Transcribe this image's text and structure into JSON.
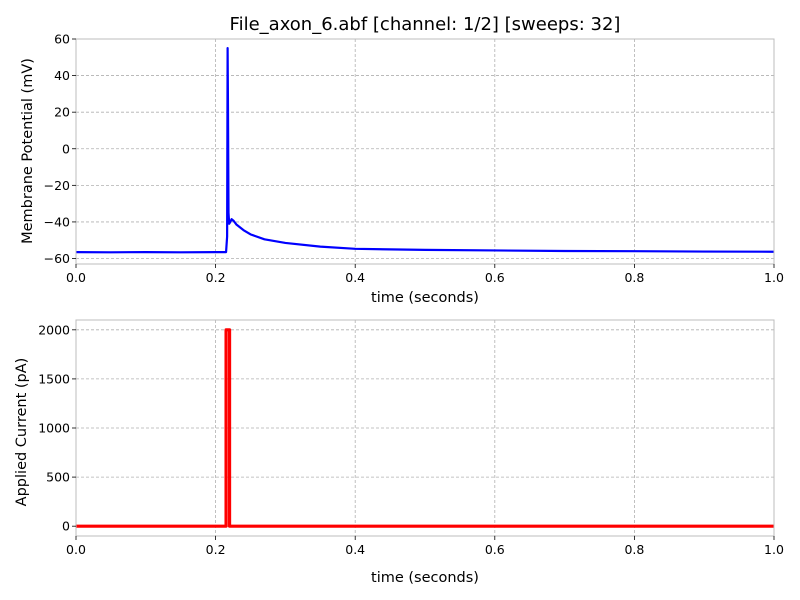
{
  "chart_data": [
    {
      "type": "line",
      "title": "File_axon_6.abf [channel: 1/2] [sweeps: 32]",
      "xlabel": "time (seconds)",
      "ylabel": "Membrane Potential (mV)",
      "xlim": [
        0.0,
        1.0
      ],
      "ylim": [
        -63,
        60
      ],
      "xticks": [
        0.0,
        0.2,
        0.4,
        0.6,
        0.8,
        1.0
      ],
      "xtick_labels": [
        "0.0",
        "0.2",
        "0.4",
        "0.6",
        "0.8",
        "1.0"
      ],
      "yticks": [
        60,
        40,
        20,
        0,
        -20,
        -40,
        -60
      ],
      "ytick_labels": [
        "60",
        "40",
        "20",
        "0",
        "−20",
        "−40",
        "−60"
      ],
      "grid": true,
      "color": "#0000ff",
      "series": [
        {
          "x": [
            0.0,
            0.05,
            0.1,
            0.15,
            0.2,
            0.215,
            0.2165,
            0.2172,
            0.2178,
            0.2185,
            0.2195,
            0.221,
            0.223,
            0.226,
            0.23,
            0.24,
            0.25,
            0.27,
            0.3,
            0.35,
            0.4,
            0.5,
            0.6,
            0.7,
            0.8,
            0.9,
            1.0
          ],
          "y": [
            -56.5,
            -56.6,
            -56.5,
            -56.6,
            -56.5,
            -56.5,
            -48,
            55,
            20,
            -35,
            -41,
            -40,
            -38.5,
            -39.5,
            -41.5,
            -44.5,
            -46.8,
            -49.5,
            -51.5,
            -53.5,
            -54.7,
            -55.3,
            -55.6,
            -55.9,
            -56.0,
            -56.2,
            -56.3
          ]
        }
      ]
    },
    {
      "type": "line",
      "xlabel": "time (seconds)",
      "ylabel": "Applied Current (pA)",
      "xlim": [
        0.0,
        1.0
      ],
      "ylim": [
        -100,
        2100
      ],
      "xticks": [
        0.0,
        0.2,
        0.4,
        0.6,
        0.8,
        1.0
      ],
      "xtick_labels": [
        "0.0",
        "0.2",
        "0.4",
        "0.6",
        "0.8",
        "1.0"
      ],
      "yticks": [
        2000,
        1500,
        1000,
        500,
        0
      ],
      "ytick_labels": [
        "2000",
        "1500",
        "1000",
        "500",
        "0"
      ],
      "grid": true,
      "color": "#ff0000",
      "series": [
        {
          "x": [
            0.0,
            0.215,
            0.215,
            0.22,
            0.22,
            1.0
          ],
          "y": [
            0,
            0,
            2000,
            2000,
            0,
            0
          ]
        }
      ]
    }
  ]
}
